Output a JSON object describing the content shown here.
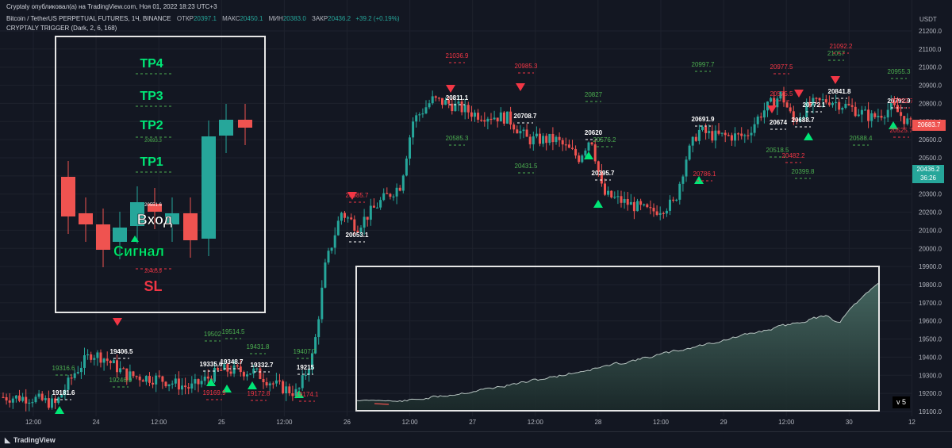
{
  "header": {
    "publish": "Cryptaly опубликовал(а) на TradingView.com, Ноя 01, 2022 18:23 UTC+3",
    "symbol": "Bitcoin / TetherUS PERPETUAL FUTURES, 1Ч, BINANCE",
    "open_label": "ОТКР",
    "open": "20397.1",
    "high_label": "МАКС",
    "high": "20450.1",
    "low_label": "МИН",
    "low": "20383.0",
    "close_label": "ЗАКР",
    "close": "20436.2",
    "change": "+39.2 (+0.19%)",
    "indicator": "CRYPTALY TRIGGER (Dark, 2, 6, 168)"
  },
  "price_axis": {
    "currency": "USDT",
    "ticks": [
      "21200.0",
      "21100.0",
      "21000.0",
      "20900.0",
      "20800.0",
      "20700.0",
      "20600.0",
      "20500.0",
      "20400.0",
      "20300.0",
      "20200.0",
      "20100.0",
      "20000.0",
      "19900.0",
      "19800.0",
      "19700.0",
      "19600.0",
      "19500.0",
      "19400.0",
      "19300.0",
      "19200.0",
      "19100.0"
    ],
    "last_price": "20436.2",
    "countdown": "36:26",
    "marked_price": "20683.7"
  },
  "time_axis": [
    "12:00",
    "24",
    "12:00",
    "25",
    "12:00",
    "26",
    "12:00",
    "27",
    "12:00",
    "28",
    "12:00",
    "29",
    "12:00",
    "30",
    "12"
  ],
  "inset": {
    "tp4": "TP4",
    "tp3": "TP3",
    "tp2": "TP2",
    "tp1": "TP1",
    "tp2_value": "20693.3",
    "entry": "Вход",
    "entry_value": "20551.6",
    "signal": "Сигнал",
    "sl": "SL",
    "sl_value": "20405.9"
  },
  "white_labels": [
    "19181.6",
    "19406.5",
    "19335.6",
    "19348.7",
    "19332.7",
    "19215",
    "20053.1",
    "20811.1",
    "20708.7",
    "20620",
    "20395.7",
    "20691.9",
    "20674",
    "20688.7",
    "20772.1",
    "20841.8",
    "20792.9"
  ],
  "green_labels": [
    "19316.6",
    "19246.9",
    "19502",
    "19514.5",
    "19431.8",
    "19407.7",
    "20585.3",
    "20431.5",
    "20827",
    "20576.2",
    "20997.7",
    "20518.5",
    "20399.8",
    "21057",
    "20955.3",
    "20588.4"
  ],
  "red_labels": [
    "21036.9",
    "20985.3",
    "20585.7",
    "20786.1",
    "20977.5",
    "21092.2",
    "20482.2",
    "19169.9",
    "19172.8",
    "19174.1",
    "20525.7",
    "20575.5",
    "20792.7"
  ],
  "equity_panel": {
    "badge": "v 5"
  },
  "footer": {
    "brand": "TradingView"
  },
  "colors": {
    "bg": "#131722",
    "up": "#26a69a",
    "down": "#ef5350",
    "signal": "#00e676",
    "target": "#4caf50",
    "stop": "#f23645"
  }
}
